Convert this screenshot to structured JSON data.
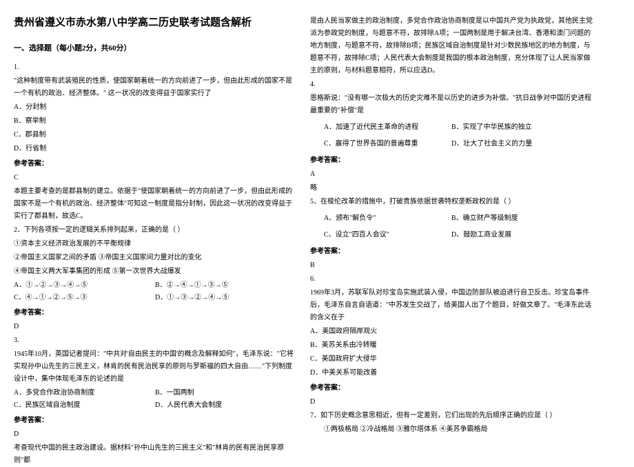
{
  "title": "贵州省遵义市赤水第八中学高二历史联考试题含解析",
  "section1": "一、选择题（每小题2分，共60分）",
  "answer_label": "参考答案：",
  "q1": {
    "num": "1.",
    "stem": "\"这种制度带有武装殖民的性质，使国家朝着统一的方向前进了一步，但由此形成的国家不是一个有机的政治、经济整体。\" 这一状况的改变得益于国家实行了",
    "A": "A．分封制",
    "B": "B．察举制",
    "C": "C．郡县制",
    "D": "D．行省制",
    "ans": "C",
    "expl": "本题主要考查的是郡县制的建立。依据于\"使国家朝着统一的方向前进了一步，但由此形成的国家不是一个有机的政治、经济整体\"可知这一制度是指分封制，因此这一状况的改变得益于实行了郡县制，故选C。"
  },
  "q2": {
    "num": "2．",
    "stem": "下列各项按一定的逻辑关系排列起来，正确的是（   ）",
    "o1": "①资本主义经济政治发展的不平衡规律",
    "o2": "②帝国主义国家之间的矛盾          ③帝国主义国家间力量对比的变化",
    "o3": "④帝国主义两大军事集团的形成     ⑤第一次世界大战爆发",
    "A": "A．①→②→③→④→⑤",
    "B": "B．②→④→①→③→⑤",
    "C": "C．④→①→②→⑤→③",
    "D": "D．①→③→②→④→⑤",
    "ans": "D"
  },
  "q3": {
    "num": "3.",
    "stem1": "1945年10月，英国记者提问：\"中共对'自由民主的中国'的概念及解释如何\"，毛泽东说：\"它将实现孙中山先生的三民主义，林肯的民有民治民享的原则与罗斯福的四大自由……\"下列制度设计中，集中体现毛泽东的论述的是",
    "A": "A．多党合作政治协商制度",
    "B": "B．一国两制",
    "C": "C．民族区域自治制度",
    "D": "D．人民代表大会制度",
    "ans": "D",
    "expl_left": "考查现代中国的民主政治建设。据材料\"孙中山先生的三民主义\"和\"林肯的民有民治民享原则\"都",
    "expl_right": "是由人民当家做主的政治制度，多党合作政治协商制度是以中国共产党为执政党，其他民主党派为参政党的制度，与题意不符，故排除A项；一国两制是用于解决台湾、香港和澳门问题的地方制度，与题意不符，故排除B项；民族区域自治制度是针对少数民族地区的地方制度，与题意不符，故排除C项；人民代表大会制度是我国的根本政治制度，充分体现了让人民当家做主的原则，与材料题意相符，所以应选D。"
  },
  "q4": {
    "num": "4.",
    "stem": "恩格斯说：\"没有哪一次极大的历史灾难不是以历史的进步为补偿。\"抗日战争对中国历史进程最重要的\"补偿\"是",
    "A": "A．加速了近代民主革命的进程",
    "B": "B．实现了中华民族的独立",
    "C": "C．赢得了世界各国的普遍尊重",
    "D": "D．壮大了社会主义的力量",
    "ans": "A",
    "note": "略"
  },
  "q5": {
    "num": "5．",
    "stem": "在梭伦改革的措施中，打破贵族依据世袭特权垄断政权的是（     ）",
    "A": "A、颁布\"解负令\"",
    "B": "B、确立财产等级制度",
    "C": "C、设立\"四百人会议\"",
    "D": "D、鼓励工商业发展",
    "ans": "B"
  },
  "q6": {
    "num": "6.",
    "stem": "1969年3月，苏联军队对珍宝岛实施武装入侵，中国边防部队被迫进行自卫反击。珍宝岛事件后，毛泽东自言自语道：\"中苏发生交战了，给美国人出了个题目，好做文章了。\"毛泽东此话的含义在于",
    "A": "A．美国政府隔岸观火",
    "B": "B．美苏关系由冷转暖",
    "C": "C．美国政府扩大侵华",
    "D": "D．中美关系可能改善",
    "ans": "D"
  },
  "q7": {
    "num": "7．",
    "stem": "如下历史概念意思相近，但有一定差别，它们出现的先后顺序正确的应是（     ）",
    "opts": "①两极格局    ②冷战格局    ③雅尔塔体系    ④美苏争霸格局"
  }
}
